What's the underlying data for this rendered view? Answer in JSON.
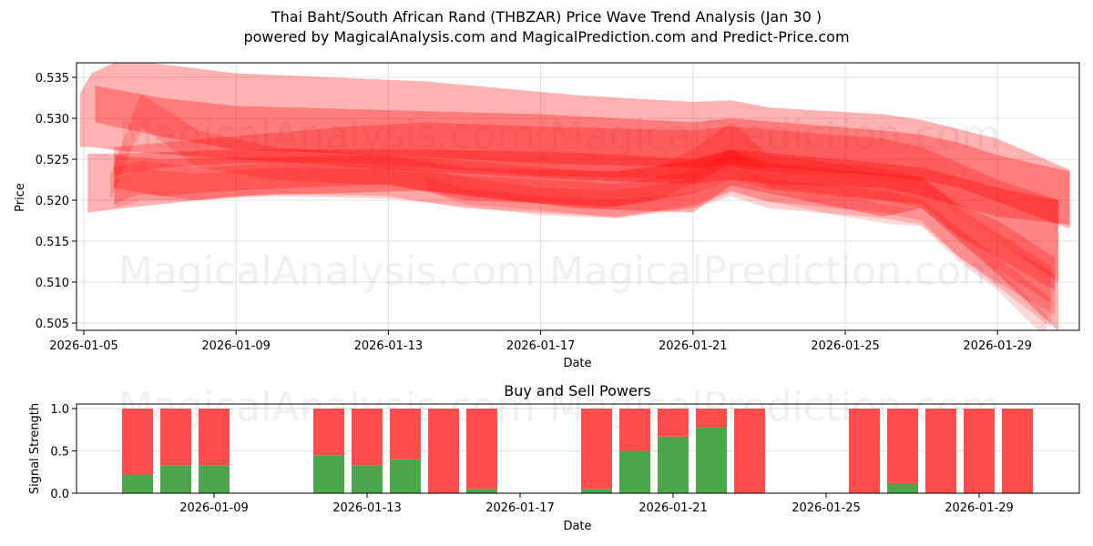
{
  "header": {
    "title": "Thai Baht/South African Rand (THBZAR) Price Wave Trend Analysis (Jan 30 )",
    "subtitle": "powered by MagicalAnalysis.com and MagicalPrediction.com and Predict-Price.com"
  },
  "watermarks": [
    "MagicalAnalysis.com",
    "MagicalPrediction.com"
  ],
  "colors": {
    "wave": "#ff0000",
    "buy": "#4ca64c",
    "sell": "#ff4c4c",
    "grid": "#e0e0e0"
  },
  "chart_data": [
    {
      "type": "area",
      "title": "Thai Baht/South African Rand (THBZAR) Price Wave Trend Analysis (Jan 30 )",
      "xlabel": "Date",
      "ylabel": "Price",
      "x_ticks": [
        "2026-01-05",
        "2026-01-09",
        "2026-01-13",
        "2026-01-17",
        "2026-01-21",
        "2026-01-25",
        "2026-01-29"
      ],
      "y_ticks": [
        "0.505",
        "0.510",
        "0.515",
        "0.520",
        "0.525",
        "0.530",
        "0.535"
      ],
      "ylim": [
        0.5043,
        0.5367
      ],
      "xlim_day": [
        4.8,
        31.2
      ],
      "grid": true,
      "series_note": "Overlapping semi-transparent red wave bands; x = day of Jan 2026, values = [upper, lower] price",
      "bands": [
        {
          "opacity": 0.3,
          "x": [
            4.9,
            5.2,
            6,
            9,
            14,
            18,
            21,
            22,
            23,
            26,
            27,
            29,
            30.9
          ],
          "upper": [
            0.533,
            0.5355,
            0.5372,
            0.5355,
            0.5345,
            0.5328,
            0.532,
            0.5322,
            0.5313,
            0.5305,
            0.5298,
            0.5275,
            0.5237
          ],
          "lower": [
            0.5265,
            0.5265,
            0.526,
            0.525,
            0.5235,
            0.5225,
            0.522,
            0.5225,
            0.522,
            0.5215,
            0.5205,
            0.518,
            0.517
          ]
        },
        {
          "opacity": 0.3,
          "x": [
            5.3,
            7,
            9,
            13,
            17,
            21,
            22,
            26,
            27,
            28,
            29,
            30.9
          ],
          "upper": [
            0.534,
            0.5325,
            0.5315,
            0.531,
            0.5305,
            0.5295,
            0.53,
            0.5285,
            0.528,
            0.527,
            0.5255,
            0.5235
          ],
          "lower": [
            0.5295,
            0.5278,
            0.5262,
            0.5255,
            0.5245,
            0.524,
            0.5243,
            0.523,
            0.5225,
            0.5215,
            0.5198,
            0.5165
          ]
        },
        {
          "opacity": 0.3,
          "x": [
            5.1,
            6,
            9,
            14,
            18,
            21,
            22,
            26,
            27,
            28,
            29,
            30.6
          ],
          "upper": [
            0.5257,
            0.5257,
            0.5262,
            0.5262,
            0.5258,
            0.525,
            0.5262,
            0.5245,
            0.524,
            0.5228,
            0.5215,
            0.52
          ],
          "lower": [
            0.5185,
            0.519,
            0.5205,
            0.5212,
            0.519,
            0.5185,
            0.5218,
            0.518,
            0.519,
            0.515,
            0.511,
            0.504
          ]
        },
        {
          "opacity": 0.25,
          "x": [
            5.8,
            7,
            9,
            12,
            14,
            17,
            21,
            22,
            26,
            27,
            28,
            29,
            30.6
          ],
          "upper": [
            0.5265,
            0.527,
            0.5278,
            0.529,
            0.5295,
            0.529,
            0.5285,
            0.529,
            0.5275,
            0.5265,
            0.5245,
            0.5225,
            0.52
          ],
          "lower": [
            0.523,
            0.524,
            0.5245,
            0.5245,
            0.524,
            0.523,
            0.5225,
            0.524,
            0.5225,
            0.5215,
            0.518,
            0.515,
            0.51
          ]
        },
        {
          "opacity": 0.25,
          "x": [
            5.8,
            7,
            9,
            13,
            15,
            19,
            21,
            22,
            23,
            26,
            27,
            28,
            29,
            30.5
          ],
          "upper": [
            0.5255,
            0.525,
            0.5252,
            0.5255,
            0.524,
            0.5235,
            0.5248,
            0.5262,
            0.5245,
            0.5232,
            0.5228,
            0.5195,
            0.5175,
            0.513
          ],
          "lower": [
            0.5215,
            0.5205,
            0.5212,
            0.522,
            0.52,
            0.5192,
            0.5208,
            0.5225,
            0.5212,
            0.52,
            0.5195,
            0.5155,
            0.513,
            0.509
          ]
        },
        {
          "opacity": 0.2,
          "x": [
            5.8,
            6.5,
            8,
            10,
            13,
            15,
            19,
            21,
            22,
            23,
            26,
            27,
            28,
            29,
            30.5
          ],
          "upper": [
            0.524,
            0.5248,
            0.524,
            0.5245,
            0.5242,
            0.523,
            0.522,
            0.5235,
            0.526,
            0.5238,
            0.5225,
            0.5215,
            0.518,
            0.515,
            0.511
          ],
          "lower": [
            0.5195,
            0.5208,
            0.52,
            0.5208,
            0.5205,
            0.519,
            0.518,
            0.5192,
            0.521,
            0.5198,
            0.5185,
            0.5175,
            0.513,
            0.51,
            0.506
          ]
        },
        {
          "opacity": 0.2,
          "x": [
            5.7,
            6.5,
            8,
            10,
            13,
            15,
            18.5,
            20,
            21,
            22,
            23,
            26,
            27,
            28,
            29,
            30.4
          ],
          "upper": [
            0.5232,
            0.533,
            0.5285,
            0.5265,
            0.5255,
            0.5248,
            0.5235,
            0.524,
            0.5262,
            0.5295,
            0.5255,
            0.5238,
            0.5228,
            0.519,
            0.516,
            0.512
          ],
          "lower": [
            0.52,
            0.529,
            0.524,
            0.5225,
            0.5218,
            0.5205,
            0.519,
            0.52,
            0.522,
            0.5245,
            0.5215,
            0.52,
            0.519,
            0.515,
            0.5115,
            0.5075
          ]
        },
        {
          "opacity": 0.18,
          "x": [
            5.8,
            6.5,
            8,
            10,
            13,
            14.5,
            17,
            19,
            21,
            22,
            23,
            26,
            27,
            28,
            29,
            30.4
          ],
          "upper": [
            0.5225,
            0.5238,
            0.5232,
            0.524,
            0.5238,
            0.5232,
            0.5215,
            0.5212,
            0.5225,
            0.524,
            0.5225,
            0.5212,
            0.5202,
            0.5165,
            0.513,
            0.508
          ],
          "lower": [
            0.519,
            0.52,
            0.52,
            0.5205,
            0.5202,
            0.5195,
            0.5182,
            0.5178,
            0.519,
            0.5205,
            0.519,
            0.5178,
            0.517,
            0.513,
            0.5095,
            0.5045
          ]
        },
        {
          "opacity": 0.15,
          "x": [
            14,
            15,
            17,
            19,
            21,
            22,
            23,
            25,
            26,
            27,
            28,
            29,
            30.3
          ],
          "upper": [
            0.5228,
            0.5215,
            0.5205,
            0.52,
            0.521,
            0.5225,
            0.521,
            0.5205,
            0.5195,
            0.5188,
            0.515,
            0.5115,
            0.506
          ],
          "lower": [
            0.5212,
            0.5195,
            0.5188,
            0.5178,
            0.5195,
            0.5212,
            0.5198,
            0.518,
            0.5172,
            0.5168,
            0.5125,
            0.509,
            0.503
          ]
        }
      ]
    },
    {
      "type": "bar",
      "title": "Buy and Sell Powers",
      "xlabel": "Date",
      "ylabel": "Signal Strength",
      "x_ticks": [
        "2026-01-09",
        "2026-01-13",
        "2026-01-17",
        "2026-01-21",
        "2026-01-25",
        "2026-01-29"
      ],
      "y_ticks": [
        "0.0",
        "0.5",
        "1.0"
      ],
      "ylim": [
        0,
        1.05
      ],
      "stacked": true,
      "categories": [
        "2026-01-07",
        "2026-01-08",
        "2026-01-09",
        "2026-01-12",
        "2026-01-13",
        "2026-01-14",
        "2026-01-15",
        "2026-01-16",
        "2026-01-19",
        "2026-01-20",
        "2026-01-21",
        "2026-01-22",
        "2026-01-23",
        "2026-01-26",
        "2026-01-27",
        "2026-01-28",
        "2026-01-29",
        "2026-01-30"
      ],
      "day": [
        7,
        8,
        9,
        12,
        13,
        14,
        15,
        16,
        19,
        20,
        21,
        22,
        23,
        26,
        27,
        28,
        29,
        30
      ],
      "series": [
        {
          "name": "Buy",
          "color": "#4ca64c",
          "values": [
            0.22,
            0.33,
            0.33,
            0.45,
            0.33,
            0.4,
            0.0,
            0.05,
            0.05,
            0.5,
            0.67,
            0.78,
            0.0,
            0.0,
            0.12,
            0.0,
            0.0,
            0.0
          ]
        },
        {
          "name": "Sell",
          "color": "#ff4c4c",
          "values": [
            0.78,
            0.67,
            0.67,
            0.55,
            0.67,
            0.6,
            1.0,
            0.95,
            0.95,
            0.5,
            0.33,
            0.22,
            1.0,
            1.0,
            0.88,
            1.0,
            1.0,
            1.0
          ]
        }
      ]
    }
  ]
}
